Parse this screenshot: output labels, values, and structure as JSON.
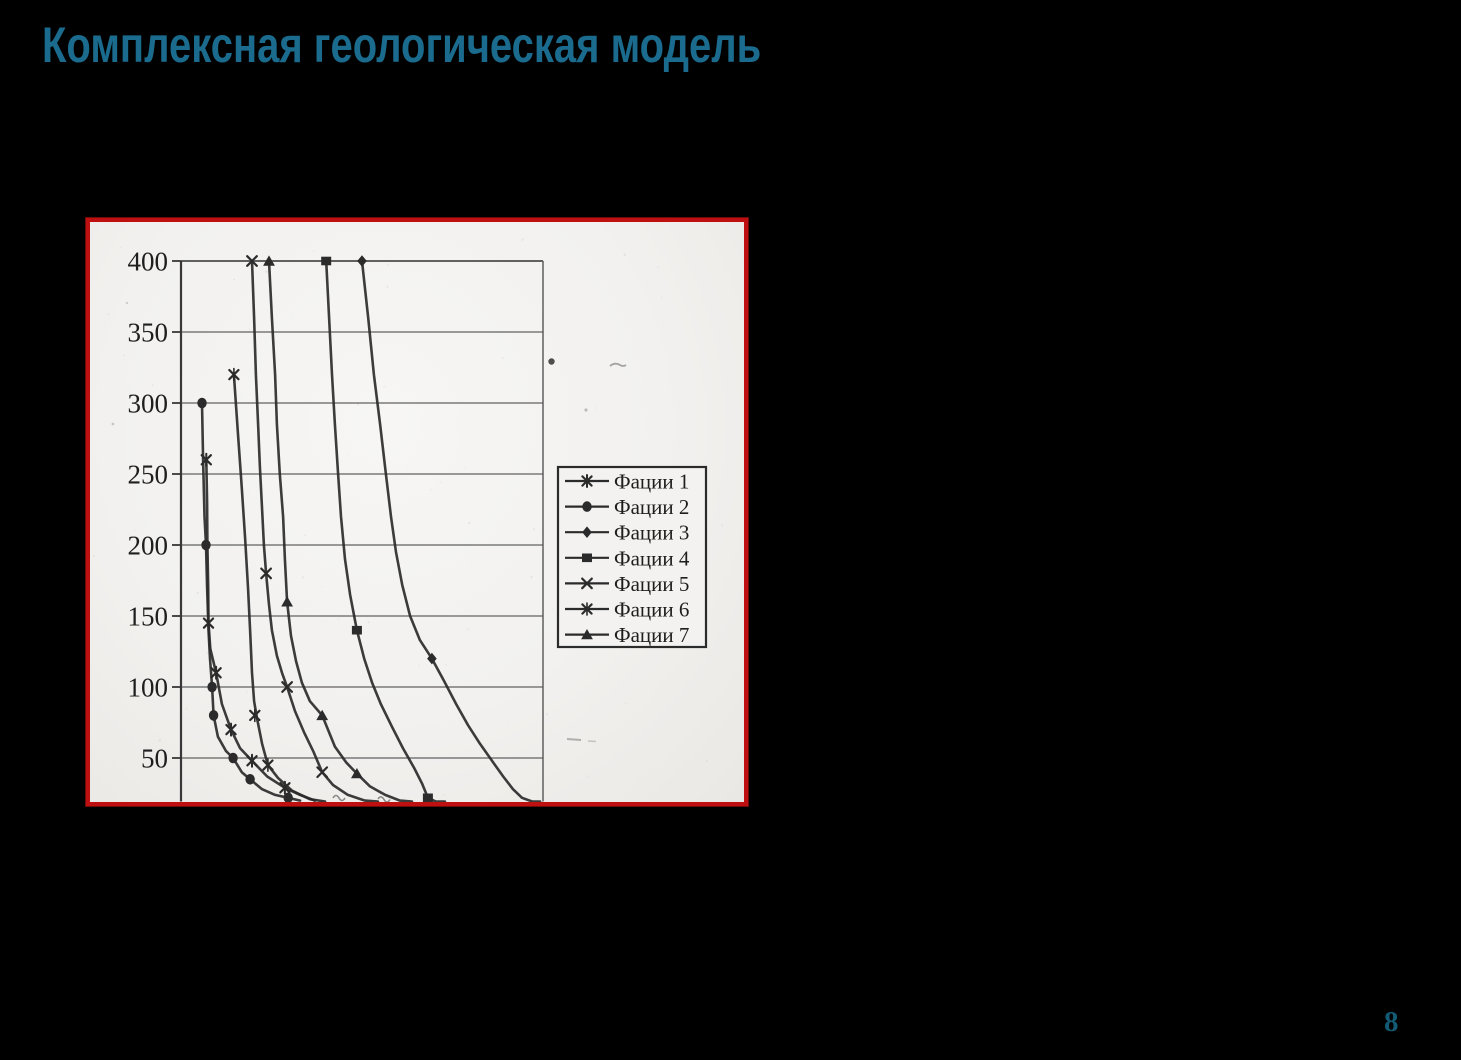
{
  "slide": {
    "title": "Комплексная геологическая модель",
    "page_number": "8"
  },
  "colors": {
    "background": "#000000",
    "title_teal": "#1a6b8d",
    "page_number_teal": "#135a74",
    "panel_border_red": "#be1010",
    "scan_paper": "#f3f2f0",
    "ink": "#2b2b2b",
    "grid_gray": "#5a5a5a",
    "label_ink": "#1e1e1e"
  },
  "chart_data": {
    "type": "line",
    "title": "",
    "xlabel": "",
    "ylabel": "",
    "y_ticks": [
      400,
      350,
      300,
      250,
      200,
      150,
      100,
      50
    ],
    "ylim": [
      0,
      400
    ],
    "x_unit": "fraction of plot width (x axis labels cropped off in scan)",
    "grid": "horizontal gridlines every 50 units",
    "legend_position": "right",
    "series": [
      {
        "name": "Фации 1",
        "marker": "xstar",
        "points": [
          [
            0.07,
            260
          ],
          [
            0.072,
            230
          ],
          [
            0.073,
            200
          ],
          [
            0.075,
            170
          ],
          [
            0.076,
            145
          ],
          [
            0.081,
            127
          ],
          [
            0.097,
            110
          ],
          [
            0.113,
            88
          ],
          [
            0.138,
            70
          ],
          [
            0.163,
            57
          ],
          [
            0.196,
            48
          ],
          [
            0.238,
            37
          ],
          [
            0.287,
            29
          ],
          [
            0.329,
            24
          ],
          [
            0.37,
            20
          ]
        ],
        "marker_points": [
          [
            0.07,
            260
          ],
          [
            0.076,
            145
          ],
          [
            0.097,
            110
          ],
          [
            0.138,
            70
          ],
          [
            0.196,
            48
          ],
          [
            0.287,
            29
          ]
        ]
      },
      {
        "name": "Фации 2",
        "marker": "circle",
        "points": [
          [
            0.058,
            300
          ],
          [
            0.061,
            260
          ],
          [
            0.065,
            220
          ],
          [
            0.069,
            200
          ],
          [
            0.072,
            170
          ],
          [
            0.076,
            140
          ],
          [
            0.08,
            120
          ],
          [
            0.086,
            100
          ],
          [
            0.09,
            80
          ],
          [
            0.102,
            65
          ],
          [
            0.124,
            55
          ],
          [
            0.144,
            50
          ],
          [
            0.168,
            40
          ],
          [
            0.191,
            35
          ],
          [
            0.224,
            28
          ],
          [
            0.26,
            24
          ],
          [
            0.296,
            22
          ],
          [
            0.329,
            20
          ]
        ],
        "marker_points": [
          [
            0.058,
            300
          ],
          [
            0.069,
            200
          ],
          [
            0.086,
            100
          ],
          [
            0.09,
            80
          ],
          [
            0.144,
            50
          ],
          [
            0.191,
            35
          ],
          [
            0.296,
            22
          ]
        ]
      },
      {
        "name": "Фации 3",
        "marker": "diamond",
        "points": [
          [
            0.5,
            400
          ],
          [
            0.517,
            360
          ],
          [
            0.533,
            320
          ],
          [
            0.55,
            285
          ],
          [
            0.566,
            250
          ],
          [
            0.58,
            220
          ],
          [
            0.594,
            195
          ],
          [
            0.611,
            172
          ],
          [
            0.633,
            150
          ],
          [
            0.66,
            133
          ],
          [
            0.693,
            120
          ],
          [
            0.727,
            104
          ],
          [
            0.76,
            88
          ],
          [
            0.793,
            73
          ],
          [
            0.826,
            60
          ],
          [
            0.859,
            48
          ],
          [
            0.89,
            37
          ],
          [
            0.917,
            28
          ],
          [
            0.942,
            22
          ],
          [
            0.97,
            19
          ],
          [
            0.992,
            18
          ]
        ],
        "marker_points": [
          [
            0.5,
            400
          ],
          [
            0.693,
            120
          ]
        ]
      },
      {
        "name": "Фации 4",
        "marker": "square",
        "points": [
          [
            0.401,
            400
          ],
          [
            0.409,
            360
          ],
          [
            0.417,
            320
          ],
          [
            0.425,
            285
          ],
          [
            0.434,
            250
          ],
          [
            0.442,
            220
          ],
          [
            0.453,
            190
          ],
          [
            0.467,
            165
          ],
          [
            0.486,
            140
          ],
          [
            0.506,
            120
          ],
          [
            0.528,
            103
          ],
          [
            0.552,
            88
          ],
          [
            0.583,
            72
          ],
          [
            0.613,
            57
          ],
          [
            0.644,
            43
          ],
          [
            0.666,
            32
          ],
          [
            0.682,
            22
          ],
          [
            0.704,
            19
          ],
          [
            0.729,
            18
          ]
        ],
        "marker_points": [
          [
            0.401,
            400
          ],
          [
            0.486,
            140
          ],
          [
            0.682,
            22
          ]
        ]
      },
      {
        "name": "Фации 5",
        "marker": "cross",
        "points": [
          [
            0.196,
            400
          ],
          [
            0.202,
            360
          ],
          [
            0.207,
            320
          ],
          [
            0.213,
            285
          ],
          [
            0.218,
            255
          ],
          [
            0.224,
            225
          ],
          [
            0.229,
            200
          ],
          [
            0.235,
            180
          ],
          [
            0.243,
            158
          ],
          [
            0.251,
            140
          ],
          [
            0.265,
            122
          ],
          [
            0.279,
            110
          ],
          [
            0.293,
            100
          ],
          [
            0.315,
            83
          ],
          [
            0.34,
            68
          ],
          [
            0.365,
            55
          ],
          [
            0.39,
            40
          ],
          [
            0.42,
            31
          ],
          [
            0.461,
            24
          ],
          [
            0.508,
            20
          ],
          [
            0.544,
            18
          ]
        ],
        "marker_points": [
          [
            0.196,
            400
          ],
          [
            0.235,
            180
          ],
          [
            0.293,
            100
          ],
          [
            0.39,
            40
          ]
        ]
      },
      {
        "name": "Фации 6",
        "marker": "star",
        "points": [
          [
            0.146,
            320
          ],
          [
            0.157,
            280
          ],
          [
            0.168,
            240
          ],
          [
            0.177,
            205
          ],
          [
            0.185,
            170
          ],
          [
            0.191,
            140
          ],
          [
            0.196,
            110
          ],
          [
            0.202,
            90
          ],
          [
            0.21,
            78
          ],
          [
            0.224,
            60
          ],
          [
            0.24,
            45
          ],
          [
            0.268,
            36
          ],
          [
            0.307,
            27
          ],
          [
            0.356,
            21
          ],
          [
            0.398,
            19
          ]
        ],
        "marker_points": [
          [
            0.146,
            320
          ],
          [
            0.204,
            80
          ],
          [
            0.24,
            45
          ]
        ]
      },
      {
        "name": "Фации 7",
        "marker": "triangle",
        "points": [
          [
            0.243,
            400
          ],
          [
            0.251,
            360
          ],
          [
            0.26,
            320
          ],
          [
            0.265,
            285
          ],
          [
            0.273,
            250
          ],
          [
            0.282,
            220
          ],
          [
            0.287,
            190
          ],
          [
            0.293,
            160
          ],
          [
            0.304,
            136
          ],
          [
            0.318,
            118
          ],
          [
            0.334,
            103
          ],
          [
            0.356,
            90
          ],
          [
            0.39,
            80
          ],
          [
            0.425,
            58
          ],
          [
            0.456,
            47
          ],
          [
            0.486,
            39
          ],
          [
            0.522,
            30
          ],
          [
            0.564,
            24
          ],
          [
            0.605,
            20
          ],
          [
            0.638,
            18.5
          ]
        ],
        "marker_points": [
          [
            0.243,
            400
          ],
          [
            0.293,
            160
          ],
          [
            0.39,
            80
          ],
          [
            0.486,
            39
          ]
        ]
      }
    ]
  }
}
